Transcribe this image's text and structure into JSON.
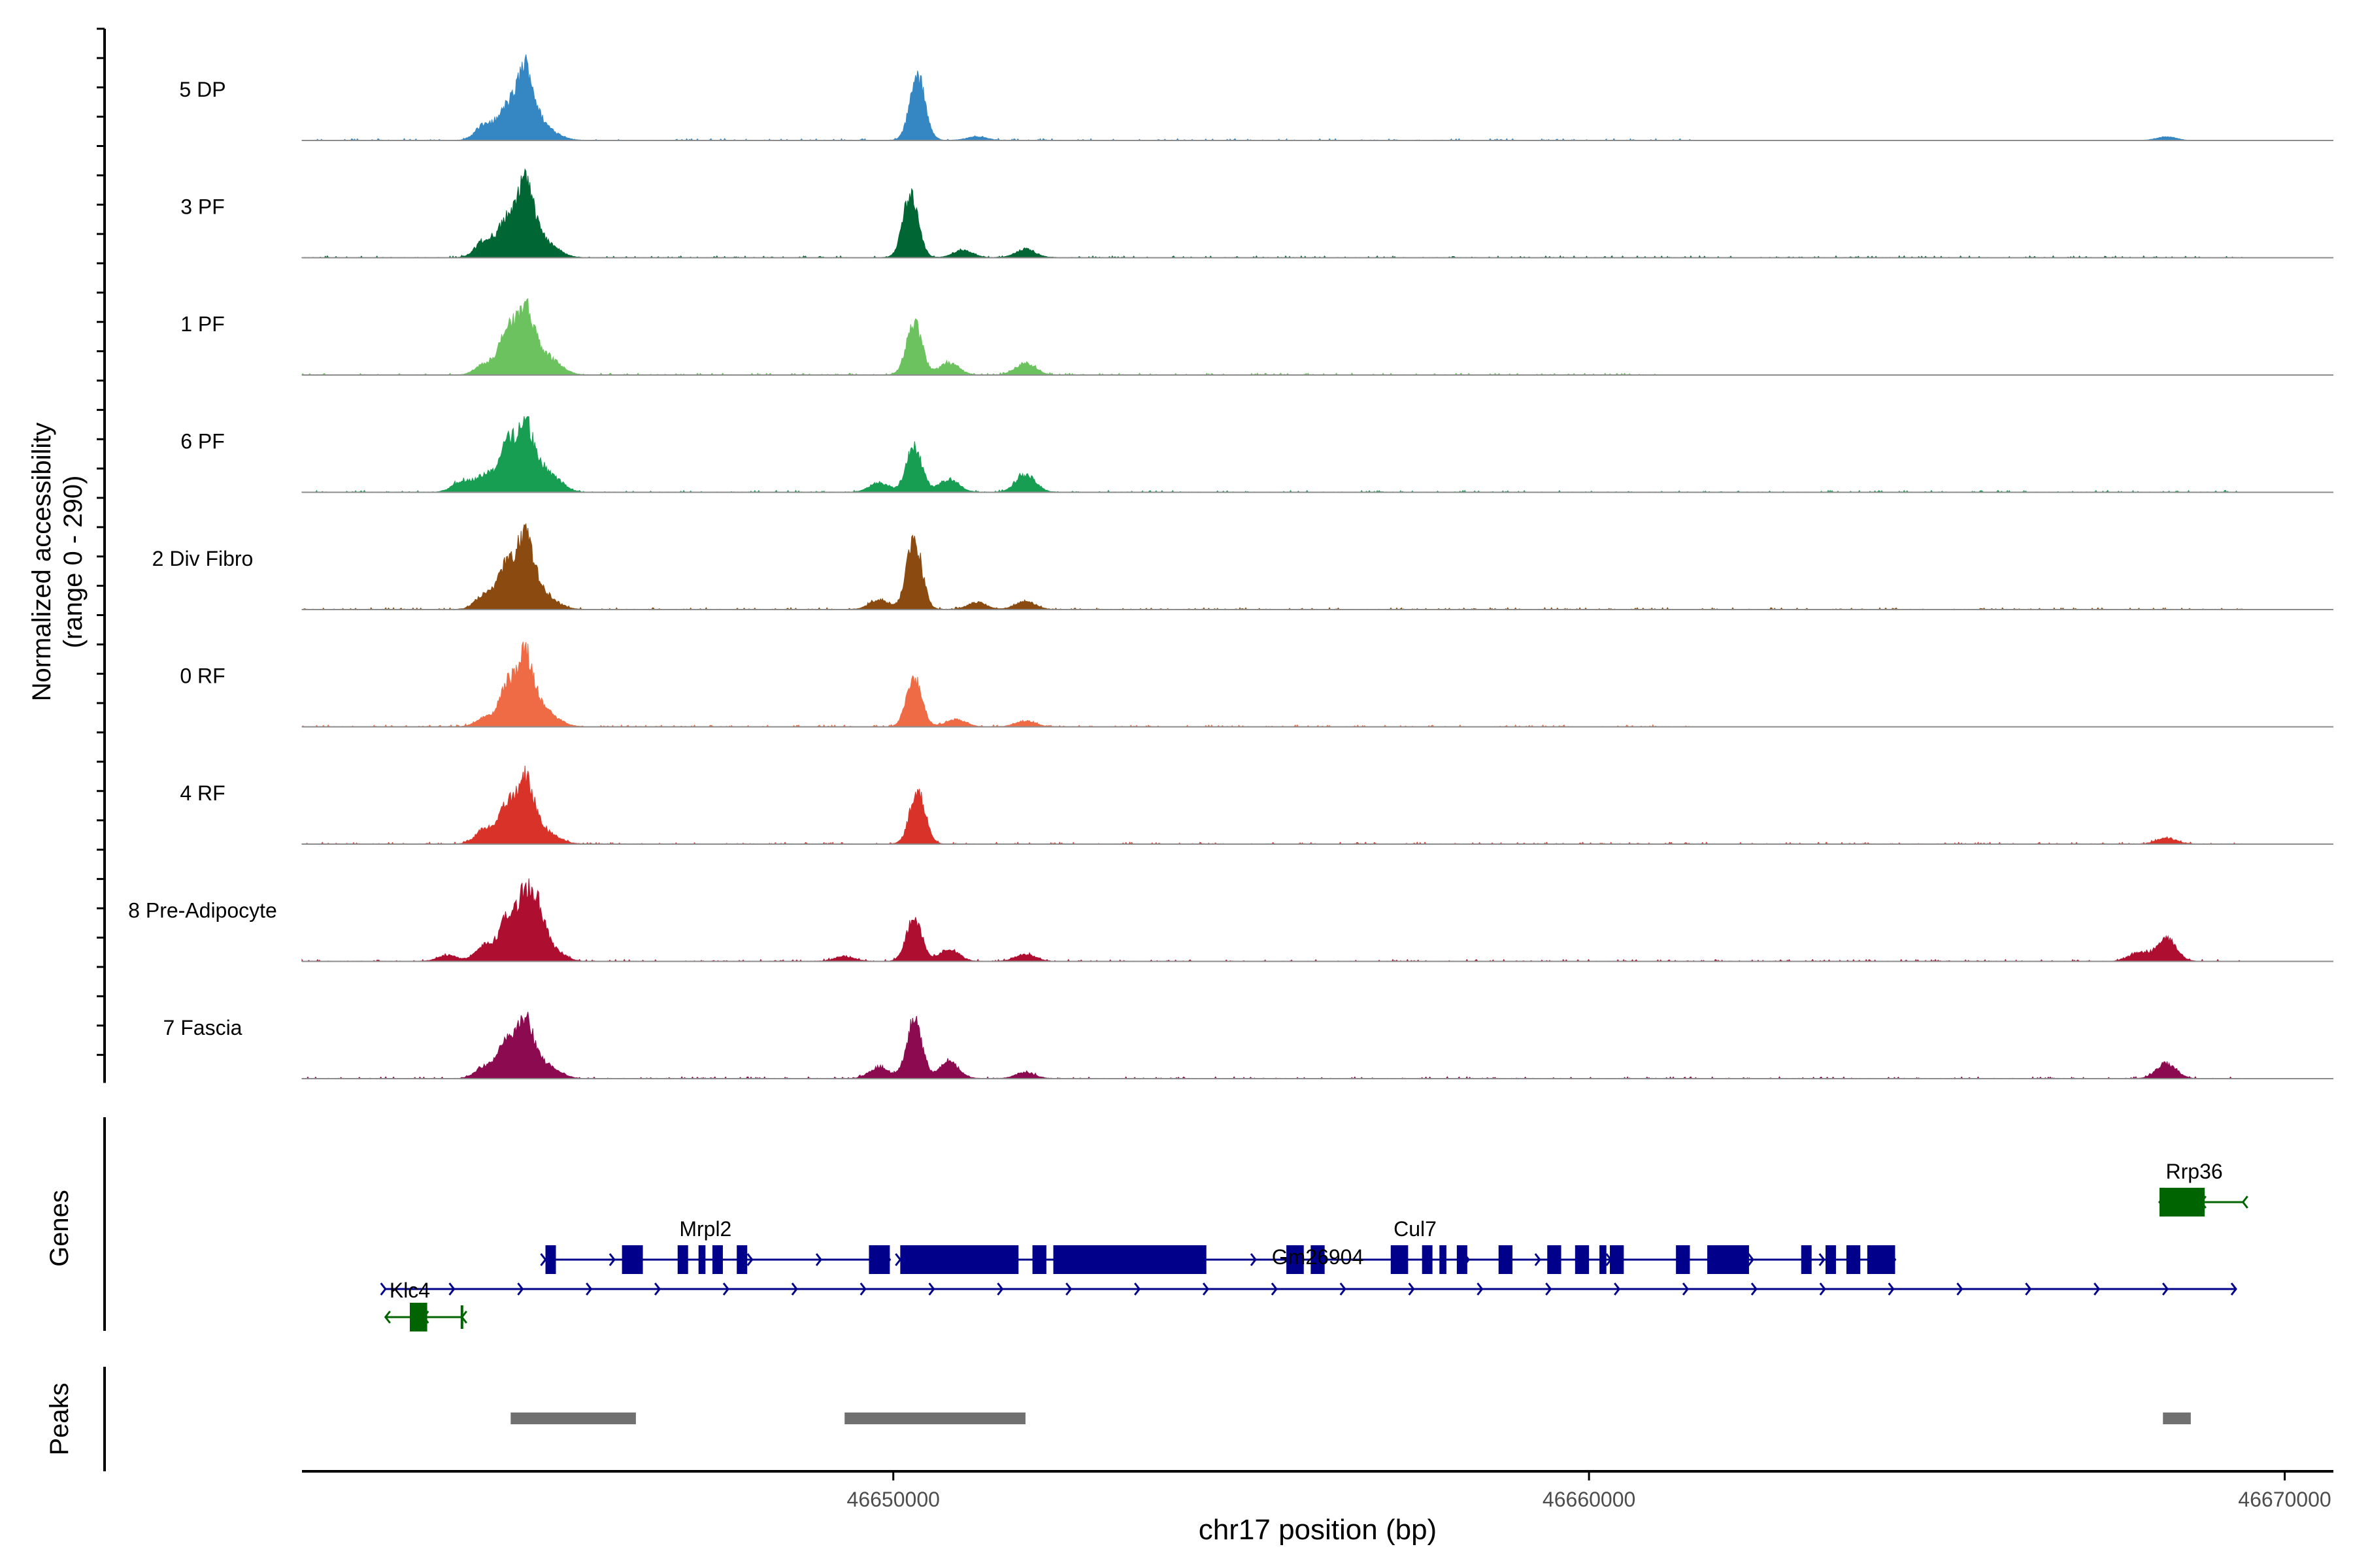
{
  "chart_data": {
    "type": "area",
    "title": "",
    "y_axis_label_line1": "Normalized accessibility",
    "y_axis_label_line2": "(range 0 - 290)",
    "y_range": [
      0,
      290
    ],
    "x_axis_label": "chr17 position (bp)",
    "x_range": [
      46641500,
      46670700
    ],
    "x_ticks": [
      46650000,
      46660000,
      46670000
    ],
    "x_tick_labels": [
      "46650000",
      "46660000",
      "46670000"
    ],
    "region_start": 46641500,
    "region_end": 46669400,
    "tracks": [
      {
        "name": "5 DP",
        "color": "#3587C4",
        "peaks": [
          [
            46644150,
            70
          ],
          [
            46644450,
            130
          ],
          [
            46644700,
            290
          ],
          [
            46644900,
            75
          ],
          [
            46645150,
            20
          ],
          [
            46650350,
            270
          ],
          [
            46651200,
            15
          ]
        ],
        "noise_end": 46661500,
        "tail_peaks": [
          [
            46668300,
            15
          ]
        ]
      },
      {
        "name": "3 PF",
        "color": "#006633",
        "peaks": [
          [
            46644150,
            80
          ],
          [
            46644450,
            150
          ],
          [
            46644700,
            290
          ],
          [
            46644900,
            85
          ],
          [
            46645150,
            25
          ],
          [
            46650250,
            270
          ],
          [
            46651000,
            30
          ],
          [
            46651900,
            35
          ]
        ],
        "noise_end": 46669400,
        "tail_peaks": []
      },
      {
        "name": "1 PF",
        "color": "#6CC25E",
        "peaks": [
          [
            46644150,
            50
          ],
          [
            46644450,
            180
          ],
          [
            46644700,
            265
          ],
          [
            46644900,
            90
          ],
          [
            46645150,
            40
          ],
          [
            46650300,
            220
          ],
          [
            46650800,
            50
          ],
          [
            46651900,
            50
          ]
        ],
        "noise_end": 46661000,
        "tail_peaks": []
      },
      {
        "name": "6 PF",
        "color": "#179E52",
        "peaks": [
          [
            46643800,
            45
          ],
          [
            46644150,
            75
          ],
          [
            46644450,
            195
          ],
          [
            46644700,
            265
          ],
          [
            46644900,
            90
          ],
          [
            46645150,
            45
          ],
          [
            46649800,
            40
          ],
          [
            46650300,
            195
          ],
          [
            46650800,
            55
          ],
          [
            46651900,
            75
          ]
        ],
        "noise_end": 46669400,
        "tail_peaks": []
      },
      {
        "name": "2 Div Fibro",
        "color": "#8B4B10",
        "peaks": [
          [
            46644150,
            70
          ],
          [
            46644450,
            190
          ],
          [
            46644700,
            280
          ],
          [
            46644900,
            85
          ],
          [
            46645150,
            20
          ],
          [
            46649800,
            40
          ],
          [
            46650300,
            295
          ],
          [
            46651200,
            30
          ],
          [
            46651900,
            35
          ]
        ],
        "noise_end": 46669400,
        "tail_peaks": []
      },
      {
        "name": "0 RF",
        "color": "#EF6B45",
        "peaks": [
          [
            46644150,
            40
          ],
          [
            46644450,
            170
          ],
          [
            46644700,
            285
          ],
          [
            46644900,
            85
          ],
          [
            46645150,
            25
          ],
          [
            46650300,
            205
          ],
          [
            46650900,
            30
          ],
          [
            46651900,
            25
          ]
        ],
        "noise_end": 46661500,
        "tail_peaks": []
      },
      {
        "name": "4 RF",
        "color": "#D93228",
        "peaks": [
          [
            46644150,
            70
          ],
          [
            46644450,
            160
          ],
          [
            46644700,
            260
          ],
          [
            46644900,
            65
          ],
          [
            46645150,
            20
          ],
          [
            46650350,
            230
          ]
        ],
        "noise_end": 46669400,
        "tail_peaks": [
          [
            46668300,
            25
          ]
        ]
      },
      {
        "name": "8 Pre-Adipocyte",
        "color": "#AE0E2F",
        "peaks": [
          [
            46643600,
            25
          ],
          [
            46644150,
            70
          ],
          [
            46644450,
            170
          ],
          [
            46644700,
            265
          ],
          [
            46644900,
            200
          ],
          [
            46645150,
            40
          ],
          [
            46649300,
            20
          ],
          [
            46650300,
            190
          ],
          [
            46650800,
            50
          ],
          [
            46651900,
            30
          ]
        ],
        "noise_end": 46669400,
        "tail_peaks": [
          [
            46667900,
            35
          ],
          [
            46668300,
            95
          ]
        ]
      },
      {
        "name": "7 Fascia",
        "color": "#8B0A50",
        "peaks": [
          [
            46644150,
            55
          ],
          [
            46644450,
            160
          ],
          [
            46644700,
            230
          ],
          [
            46644900,
            65
          ],
          [
            46645150,
            25
          ],
          [
            46649800,
            50
          ],
          [
            46650300,
            245
          ],
          [
            46650800,
            70
          ],
          [
            46651900,
            25
          ]
        ],
        "noise_end": 46669400,
        "tail_peaks": [
          [
            46668300,
            65
          ]
        ]
      }
    ],
    "genes_panel_label": "Genes",
    "genes": [
      {
        "name": "Rrp36",
        "color": "#006400",
        "strand": "-",
        "row": 0,
        "start": 46668200,
        "end": 46669400,
        "exons": [
          [
            46668200,
            46668850
          ]
        ],
        "label_pos": 46668700
      },
      {
        "name": "Cul7",
        "color": "#00008B",
        "strand": "+",
        "row": 1,
        "start": 46650100,
        "end": 46664400,
        "exons": [
          [
            46650100,
            46651800
          ],
          [
            46652000,
            46652200
          ],
          [
            46652300,
            46654500
          ],
          [
            46655650,
            46655900
          ],
          [
            46656000,
            46656200
          ],
          [
            46657150,
            46657400
          ],
          [
            46657600,
            46657750
          ],
          [
            46657850,
            46657950
          ],
          [
            46658100,
            46658250
          ],
          [
            46658700,
            46658900
          ],
          [
            46659400,
            46659600
          ],
          [
            46659800,
            46660000
          ],
          [
            46660150,
            46660250
          ],
          [
            46660300,
            46660500
          ],
          [
            46661250,
            46661450
          ],
          [
            46661700,
            46662300
          ],
          [
            46663050,
            46663200
          ],
          [
            46663400,
            46663550
          ],
          [
            46663700,
            46663900
          ],
          [
            46664000,
            46664400
          ]
        ],
        "label_pos": 46657500
      },
      {
        "name": "Mrpl2",
        "color": "#00008B",
        "strand": "+",
        "row": 2,
        "start": 46645000,
        "end": 46649950,
        "exons": [
          [
            46645000,
            46645150
          ],
          [
            46646100,
            46646400
          ],
          [
            46646900,
            46647050
          ],
          [
            46647200,
            46647300
          ],
          [
            46647400,
            46647550
          ],
          [
            46647750,
            46647900
          ],
          [
            46649650,
            46649950
          ]
        ],
        "label_pos": 46647300
      },
      {
        "name": "Gm26904",
        "color": "#00008B",
        "strand": "+",
        "row": 3,
        "start": 46642700,
        "end": 46669300,
        "exons": [],
        "label_pos": 46656100
      },
      {
        "name": "Klc4",
        "color": "#006400",
        "strand": "-",
        "row": 4,
        "start": 46642700,
        "end": 46643800,
        "exons": [
          [
            46643050,
            46643300
          ]
        ],
        "label_pos": 46643050
      }
    ],
    "peaks_panel_label": "Peaks",
    "called_peaks": [
      [
        46644500,
        46646300
      ],
      [
        46649300,
        46651900
      ],
      [
        46668250,
        46668650
      ]
    ]
  }
}
